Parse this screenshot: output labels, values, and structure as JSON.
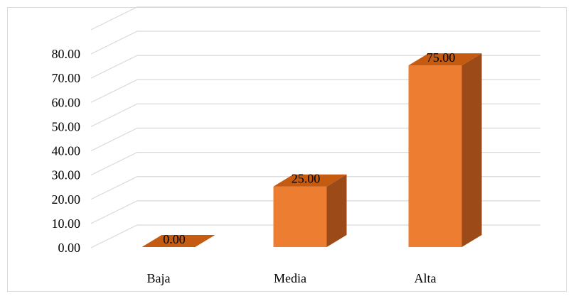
{
  "chart_data": {
    "type": "bar",
    "style": "3d-column",
    "categories": [
      "Baja",
      "Media",
      "Alta"
    ],
    "values": [
      0.0,
      25.0,
      75.0
    ],
    "data_labels": [
      "0.00",
      "25.00",
      "75.00"
    ],
    "ylim": [
      0,
      80
    ],
    "y_ticks": [
      "0.00",
      "10.00",
      "20.00",
      "30.00",
      "40.00",
      "50.00",
      "60.00",
      "70.00",
      "80.00"
    ],
    "grid": true,
    "legend": "none",
    "colors": {
      "front": "#ED7D31",
      "top": "#C55A11",
      "side": "#9C4A18",
      "gridline": "#d9d9d9"
    }
  }
}
